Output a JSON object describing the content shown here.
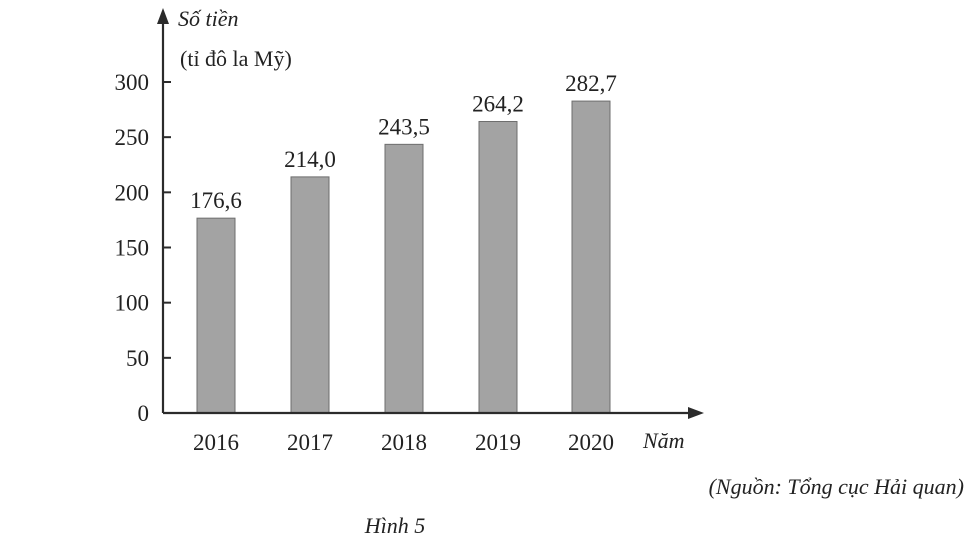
{
  "chart_data": {
    "type": "bar",
    "categories": [
      "2016",
      "2017",
      "2018",
      "2019",
      "2020"
    ],
    "values": [
      176.6,
      214.0,
      243.5,
      264.2,
      282.7
    ],
    "value_labels": [
      "176,6",
      "214,0",
      "243,5",
      "264,2",
      "282,7"
    ],
    "ylabel_line1": "Số tiền",
    "ylabel_line2": "(tỉ đô la Mỹ)",
    "xlabel": "Năm",
    "yticks": [
      0,
      50,
      100,
      150,
      200,
      250,
      300
    ],
    "ylim": [
      0,
      300
    ],
    "grid": false,
    "bar_color": "#a3a3a3",
    "source": "(Nguồn: Tổng cục Hải quan)",
    "caption": "Hình 5"
  }
}
